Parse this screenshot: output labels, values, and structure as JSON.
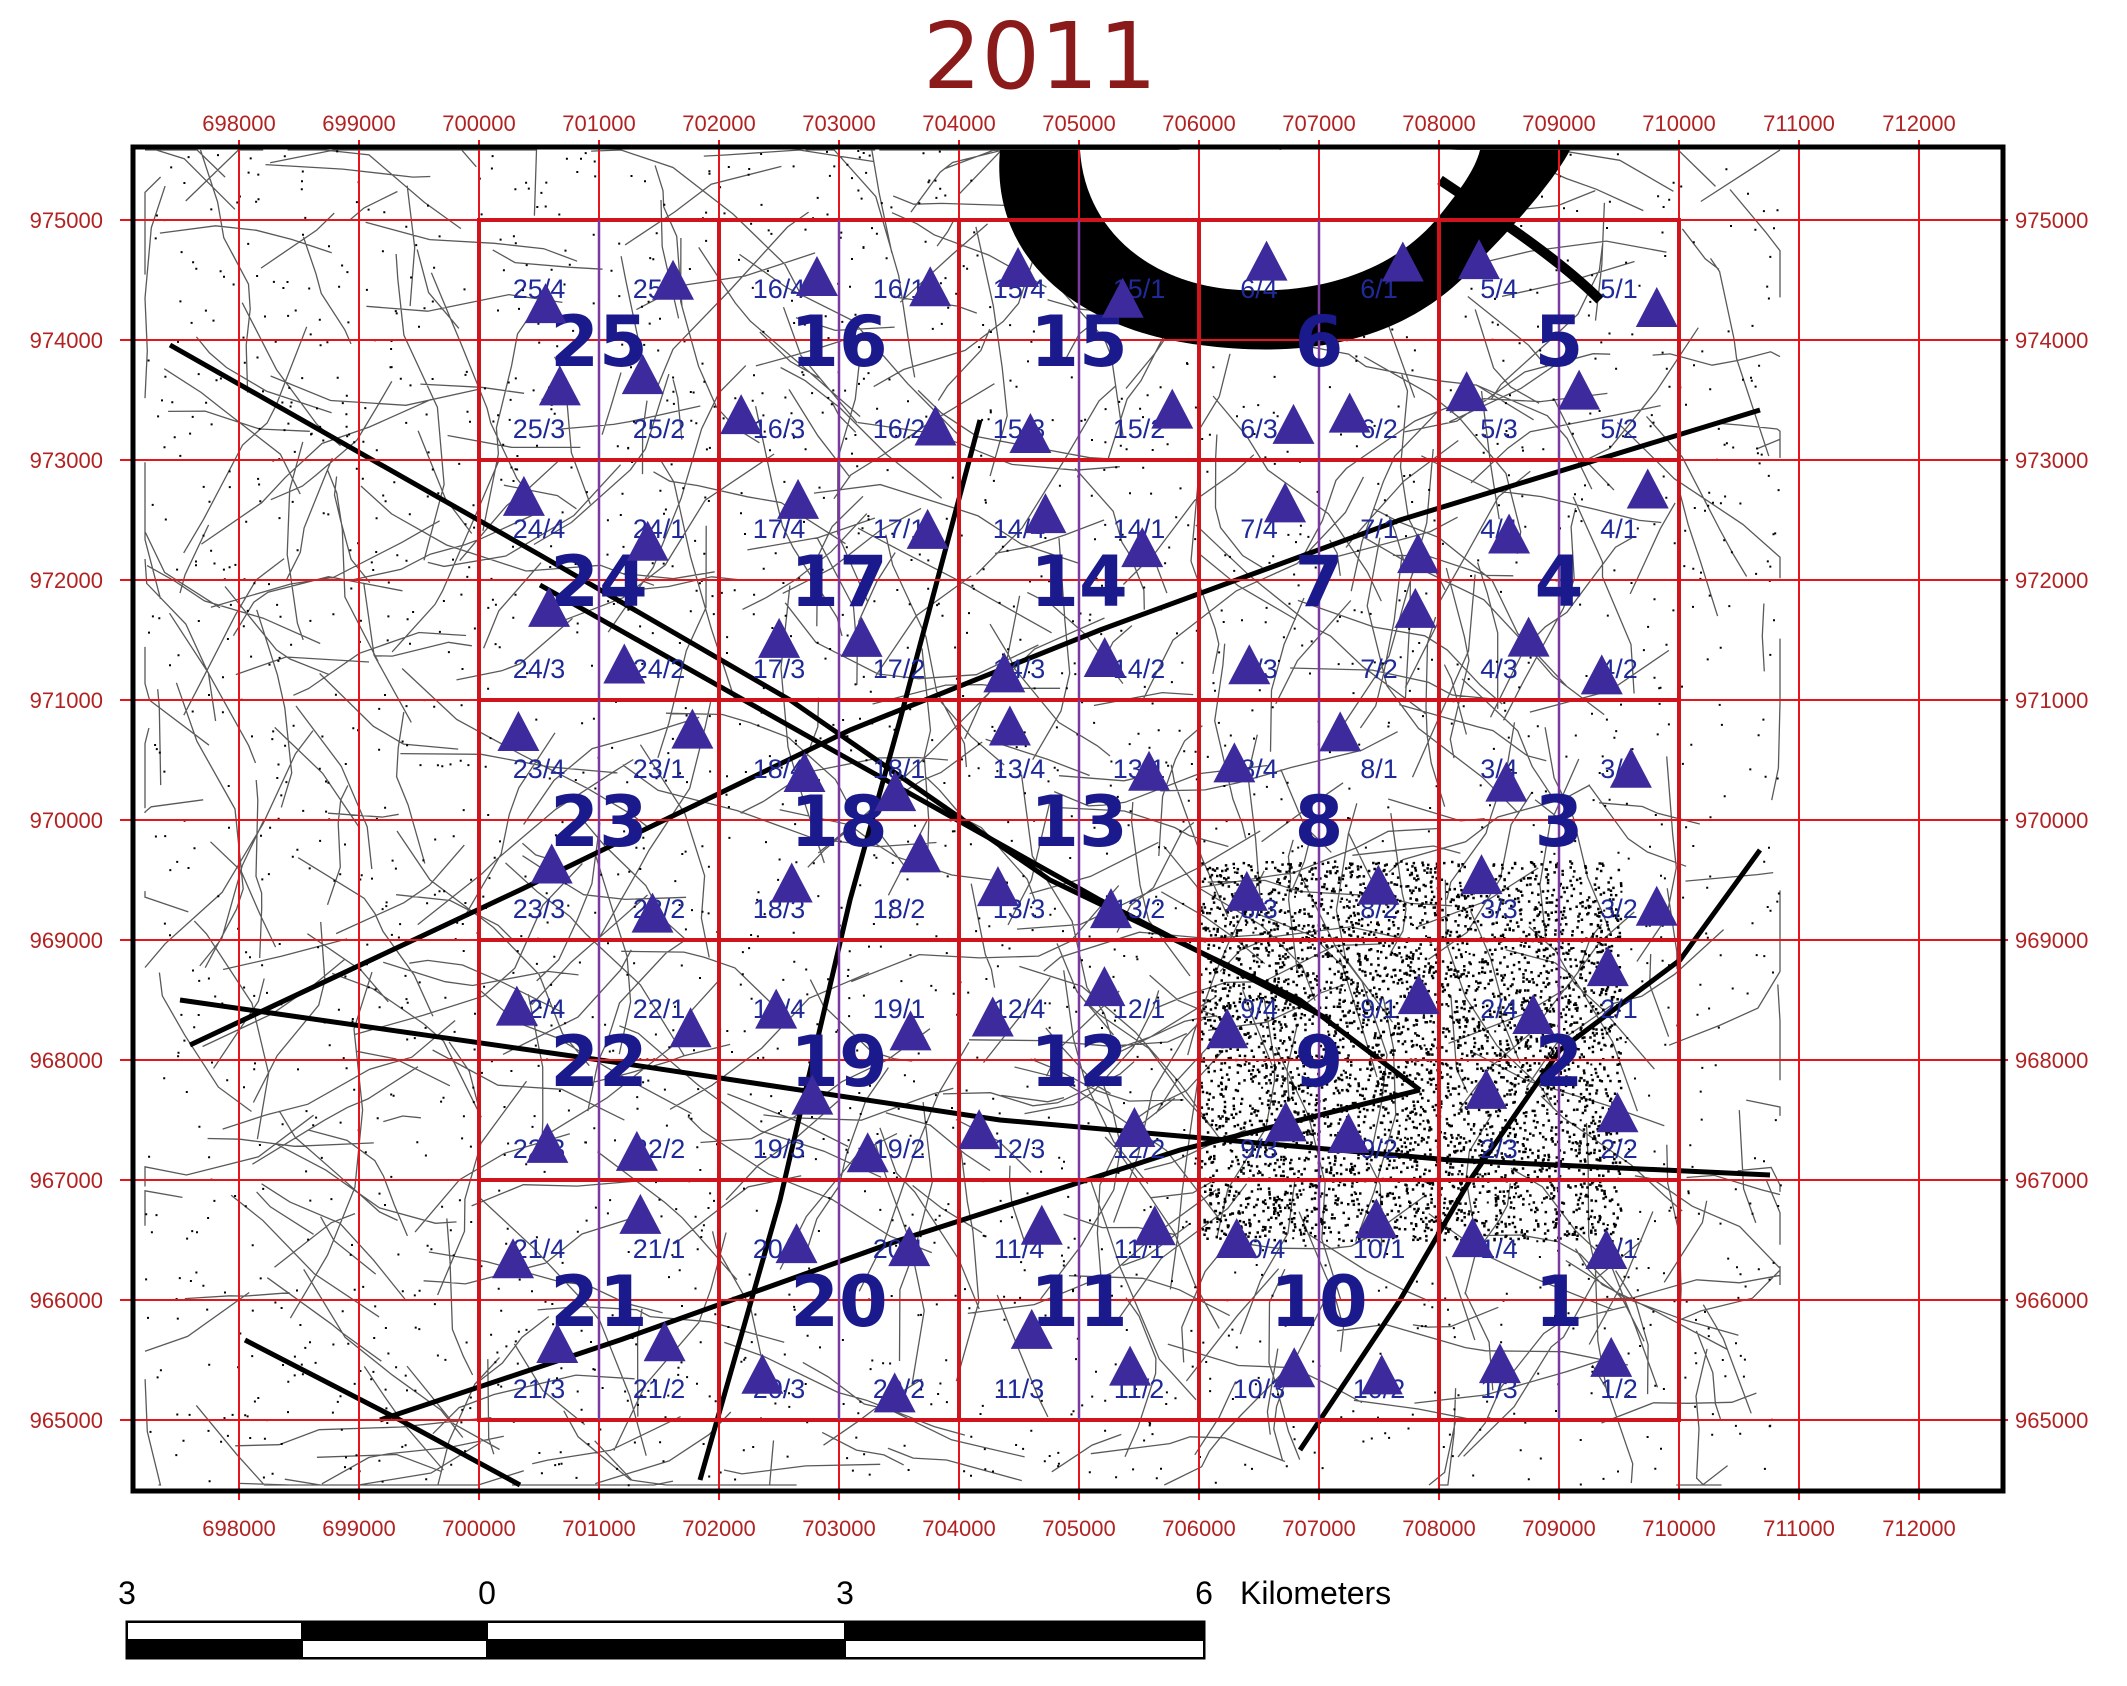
{
  "map": {
    "title": "2011",
    "x_ticks": [
      "698000",
      "699000",
      "700000",
      "701000",
      "702000",
      "703000",
      "704000",
      "705000",
      "706000",
      "707000",
      "708000",
      "709000",
      "710000",
      "711000",
      "712000"
    ],
    "y_ticks": [
      "975000",
      "974000",
      "973000",
      "972000",
      "971000",
      "970000",
      "969000",
      "968000",
      "967000",
      "966000",
      "965000"
    ],
    "colors": {
      "grid": "#e8141b",
      "cell_border": "#d0141b",
      "tick_text": "#b22222",
      "title": "#8b1a1a",
      "label": "#1a1a8c",
      "sublabel": "#1f2a99",
      "marker": "#3d2a9c",
      "river": "#000000",
      "frame": "#000000"
    },
    "cells": [
      {
        "num": "25",
        "subs": [
          "25/4",
          "25/1",
          "25/3",
          "25/2"
        ]
      },
      {
        "num": "16",
        "subs": [
          "16/4",
          "16/1",
          "16/3",
          "16/2"
        ]
      },
      {
        "num": "15",
        "subs": [
          "15/4",
          "15/1",
          "15/3",
          "15/2"
        ]
      },
      {
        "num": "6",
        "subs": [
          "6/4",
          "6/1",
          "6/3",
          "6/2"
        ]
      },
      {
        "num": "5",
        "subs": [
          "5/4",
          "5/1",
          "5/3",
          "5/2"
        ]
      },
      {
        "num": "24",
        "subs": [
          "24/4",
          "24/1",
          "24/3",
          "24/2"
        ]
      },
      {
        "num": "17",
        "subs": [
          "17/4",
          "17/1",
          "17/3",
          "17/2"
        ]
      },
      {
        "num": "14",
        "subs": [
          "14/4",
          "14/1",
          "14/3",
          "14/2"
        ]
      },
      {
        "num": "7",
        "subs": [
          "7/4",
          "7/1",
          "7/3",
          "7/2"
        ]
      },
      {
        "num": "4",
        "subs": [
          "4/4",
          "4/1",
          "4/3",
          "4/2"
        ]
      },
      {
        "num": "23",
        "subs": [
          "23/4",
          "23/1",
          "23/3",
          "23/2"
        ]
      },
      {
        "num": "18",
        "subs": [
          "18/4",
          "18/1",
          "18/3",
          "18/2"
        ]
      },
      {
        "num": "13",
        "subs": [
          "13/4",
          "13/1",
          "13/3",
          "13/2"
        ]
      },
      {
        "num": "8",
        "subs": [
          "8/4",
          "8/1",
          "8/3",
          "8/2"
        ]
      },
      {
        "num": "3",
        "subs": [
          "3/4",
          "3/1",
          "3/3",
          "3/2"
        ]
      },
      {
        "num": "22",
        "subs": [
          "22/4",
          "22/1",
          "22/3",
          "22/2"
        ]
      },
      {
        "num": "19",
        "subs": [
          "19/4",
          "19/1",
          "19/3",
          "19/2"
        ]
      },
      {
        "num": "12",
        "subs": [
          "12/4",
          "12/1",
          "12/3",
          "12/2"
        ]
      },
      {
        "num": "9",
        "subs": [
          "9/4",
          "9/1",
          "9/3",
          "9/2"
        ]
      },
      {
        "num": "2",
        "subs": [
          "2/4",
          "2/1",
          "2/3",
          "2/2"
        ]
      },
      {
        "num": "21",
        "subs": [
          "21/4",
          "21/1",
          "21/3",
          "21/2"
        ]
      },
      {
        "num": "20",
        "subs": [
          "20/4",
          "20/1",
          "20/3",
          "20/2"
        ]
      },
      {
        "num": "11",
        "subs": [
          "11/4",
          "11/1",
          "11/3",
          "11/2"
        ]
      },
      {
        "num": "10",
        "subs": [
          "10/4",
          "10/1",
          "10/3",
          "10/2"
        ]
      },
      {
        "num": "1",
        "subs": [
          "1/4",
          "1/1",
          "1/3",
          "1/2"
        ]
      }
    ],
    "scale_bar": {
      "labels": [
        "3",
        "0",
        "3",
        "6"
      ],
      "unit": "Kilometers"
    }
  }
}
